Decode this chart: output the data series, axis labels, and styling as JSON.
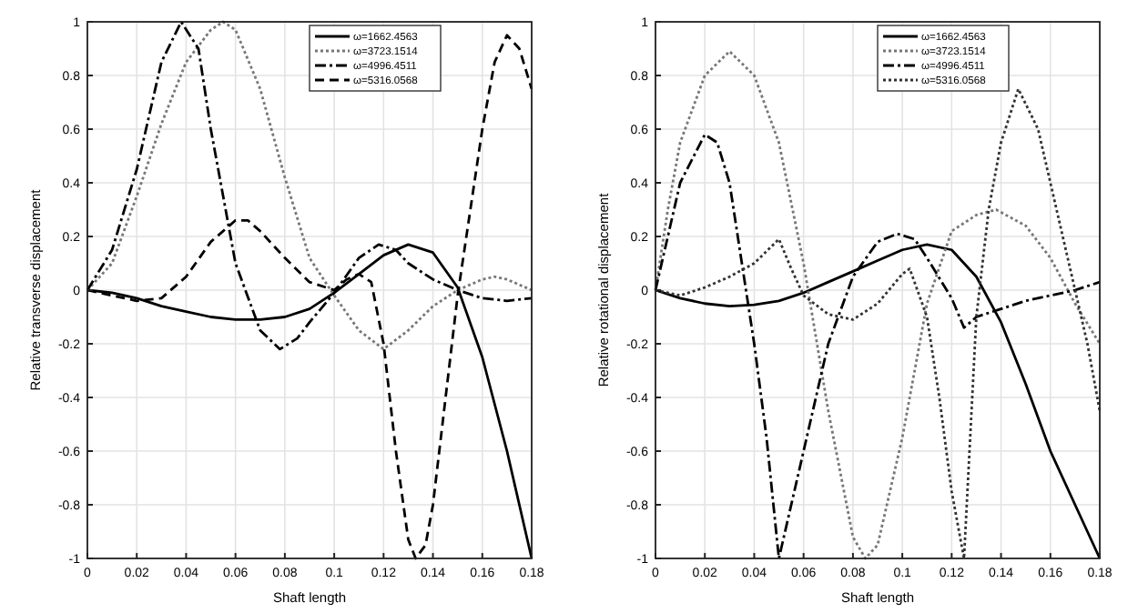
{
  "chart_data": [
    {
      "type": "line",
      "xlabel": "Shaft length",
      "ylabel": "Relative transverse displacement",
      "xlim": [
        0,
        0.18
      ],
      "ylim": [
        -1,
        1
      ],
      "xticks": [
        0,
        0.02,
        0.04,
        0.06,
        0.08,
        0.1,
        0.12,
        0.14,
        0.16,
        0.18
      ],
      "yticks": [
        -1,
        -0.8,
        -0.6,
        -0.4,
        -0.2,
        0,
        0.2,
        0.4,
        0.6,
        0.8,
        1
      ],
      "grid": true,
      "legend": "top right",
      "series": [
        {
          "name": "ω=1662.4563",
          "color": "#000000",
          "line_style": "solid",
          "x": [
            0,
            0.01,
            0.02,
            0.03,
            0.04,
            0.05,
            0.06,
            0.07,
            0.08,
            0.09,
            0.1,
            0.11,
            0.12,
            0.13,
            0.14,
            0.15,
            0.16,
            0.17,
            0.18
          ],
          "values": [
            0,
            -0.01,
            -0.03,
            -0.06,
            -0.08,
            -0.1,
            -0.11,
            -0.11,
            -0.1,
            -0.07,
            -0.01,
            0.06,
            0.13,
            0.17,
            0.14,
            0.01,
            -0.25,
            -0.6,
            -1
          ]
        },
        {
          "name": "ω=3723.1514",
          "color": "#777777",
          "line_style": "dotted",
          "x": [
            0,
            0.01,
            0.02,
            0.03,
            0.04,
            0.05,
            0.055,
            0.06,
            0.07,
            0.08,
            0.09,
            0.1,
            0.11,
            0.12,
            0.13,
            0.14,
            0.15,
            0.16,
            0.165,
            0.17,
            0.18
          ],
          "values": [
            0,
            0.1,
            0.35,
            0.62,
            0.85,
            0.97,
            1,
            0.97,
            0.75,
            0.42,
            0.12,
            -0.02,
            -0.15,
            -0.22,
            -0.15,
            -0.06,
            0,
            0.04,
            0.05,
            0.04,
            0
          ]
        },
        {
          "name": "ω=4996.4511",
          "color": "#000000",
          "line_style": "dashdot",
          "x": [
            0,
            0.01,
            0.02,
            0.03,
            0.038,
            0.045,
            0.05,
            0.06,
            0.07,
            0.078,
            0.085,
            0.09,
            0.1,
            0.11,
            0.118,
            0.125,
            0.13,
            0.14,
            0.15,
            0.16,
            0.17,
            0.18
          ],
          "values": [
            0,
            0.15,
            0.45,
            0.85,
            1,
            0.9,
            0.6,
            0.1,
            -0.15,
            -0.22,
            -0.18,
            -0.12,
            -0.01,
            0.12,
            0.17,
            0.15,
            0.1,
            0.04,
            0,
            -0.03,
            -0.04,
            -0.03
          ]
        },
        {
          "name": "ω=5316.0568",
          "color": "#000000",
          "line_style": "dashed",
          "x": [
            0,
            0.01,
            0.02,
            0.03,
            0.04,
            0.05,
            0.06,
            0.065,
            0.07,
            0.08,
            0.09,
            0.1,
            0.105,
            0.11,
            0.115,
            0.12,
            0.125,
            0.13,
            0.133,
            0.137,
            0.14,
            0.15,
            0.16,
            0.165,
            0.17,
            0.175,
            0.18
          ],
          "values": [
            0,
            -0.02,
            -0.04,
            -0.03,
            0.05,
            0.18,
            0.26,
            0.26,
            0.22,
            0.12,
            0.03,
            0,
            0.04,
            0.06,
            0.03,
            -0.2,
            -0.6,
            -0.93,
            -1,
            -0.95,
            -0.8,
            -0.02,
            0.6,
            0.85,
            0.95,
            0.9,
            0.75
          ]
        }
      ]
    },
    {
      "type": "line",
      "xlabel": "Shaft length",
      "ylabel": "Relative rotational displacement",
      "xlim": [
        0,
        0.18
      ],
      "ylim": [
        -1,
        1
      ],
      "xticks": [
        0,
        0.02,
        0.04,
        0.06,
        0.08,
        0.1,
        0.12,
        0.14,
        0.16,
        0.18
      ],
      "yticks": [
        -1,
        -0.8,
        -0.6,
        -0.4,
        -0.2,
        0,
        0.2,
        0.4,
        0.6,
        0.8,
        1
      ],
      "grid": true,
      "legend": "top right",
      "series": [
        {
          "name": "ω=1662.4563",
          "color": "#000000",
          "line_style": "solid",
          "x": [
            0,
            0.01,
            0.02,
            0.03,
            0.04,
            0.05,
            0.06,
            0.07,
            0.08,
            0.09,
            0.1,
            0.11,
            0.12,
            0.13,
            0.14,
            0.15,
            0.16,
            0.17,
            0.18
          ],
          "values": [
            0,
            -0.03,
            -0.05,
            -0.06,
            -0.055,
            -0.04,
            -0.01,
            0.03,
            0.07,
            0.11,
            0.15,
            0.17,
            0.15,
            0.05,
            -0.12,
            -0.35,
            -0.6,
            -0.8,
            -1
          ]
        },
        {
          "name": "ω=3723.1514",
          "color": "#777777",
          "line_style": "dotted",
          "x": [
            0,
            0.005,
            0.01,
            0.02,
            0.03,
            0.04,
            0.05,
            0.06,
            0.07,
            0.08,
            0.085,
            0.09,
            0.1,
            0.11,
            0.12,
            0.13,
            0.138,
            0.15,
            0.16,
            0.17,
            0.18
          ],
          "values": [
            0,
            0.3,
            0.55,
            0.8,
            0.89,
            0.8,
            0.55,
            0.1,
            -0.45,
            -0.92,
            -1,
            -0.95,
            -0.55,
            -0.05,
            0.22,
            0.28,
            0.3,
            0.24,
            0.12,
            -0.05,
            -0.2
          ]
        },
        {
          "name": "ω=4996.4511",
          "color": "#000000",
          "line_style": "dashdot",
          "x": [
            0,
            0.005,
            0.01,
            0.02,
            0.025,
            0.03,
            0.04,
            0.045,
            0.05,
            0.06,
            0.07,
            0.08,
            0.09,
            0.098,
            0.105,
            0.11,
            0.12,
            0.125,
            0.13,
            0.14,
            0.15,
            0.16,
            0.17,
            0.18
          ],
          "values": [
            0,
            0.2,
            0.4,
            0.58,
            0.55,
            0.4,
            -0.2,
            -0.55,
            -1,
            -0.6,
            -0.2,
            0.05,
            0.18,
            0.21,
            0.19,
            0.12,
            -0.03,
            -0.14,
            -0.1,
            -0.07,
            -0.04,
            -0.02,
            0,
            0.03
          ]
        },
        {
          "name": "ω=5316.0568",
          "color": "#333333",
          "line_style": "dotted",
          "x": [
            0,
            0.01,
            0.02,
            0.03,
            0.04,
            0.05,
            0.055,
            0.06,
            0.07,
            0.08,
            0.09,
            0.1,
            0.103,
            0.11,
            0.115,
            0.12,
            0.125,
            0.13,
            0.135,
            0.14,
            0.147,
            0.155,
            0.165,
            0.175,
            0.18
          ],
          "values": [
            0,
            -0.02,
            0.01,
            0.05,
            0.1,
            0.19,
            0.08,
            -0.02,
            -0.09,
            -0.11,
            -0.05,
            0.06,
            0.08,
            -0.1,
            -0.4,
            -0.75,
            -1,
            -0.1,
            0.3,
            0.55,
            0.75,
            0.6,
            0.2,
            -0.2,
            -0.45
          ]
        }
      ]
    }
  ]
}
